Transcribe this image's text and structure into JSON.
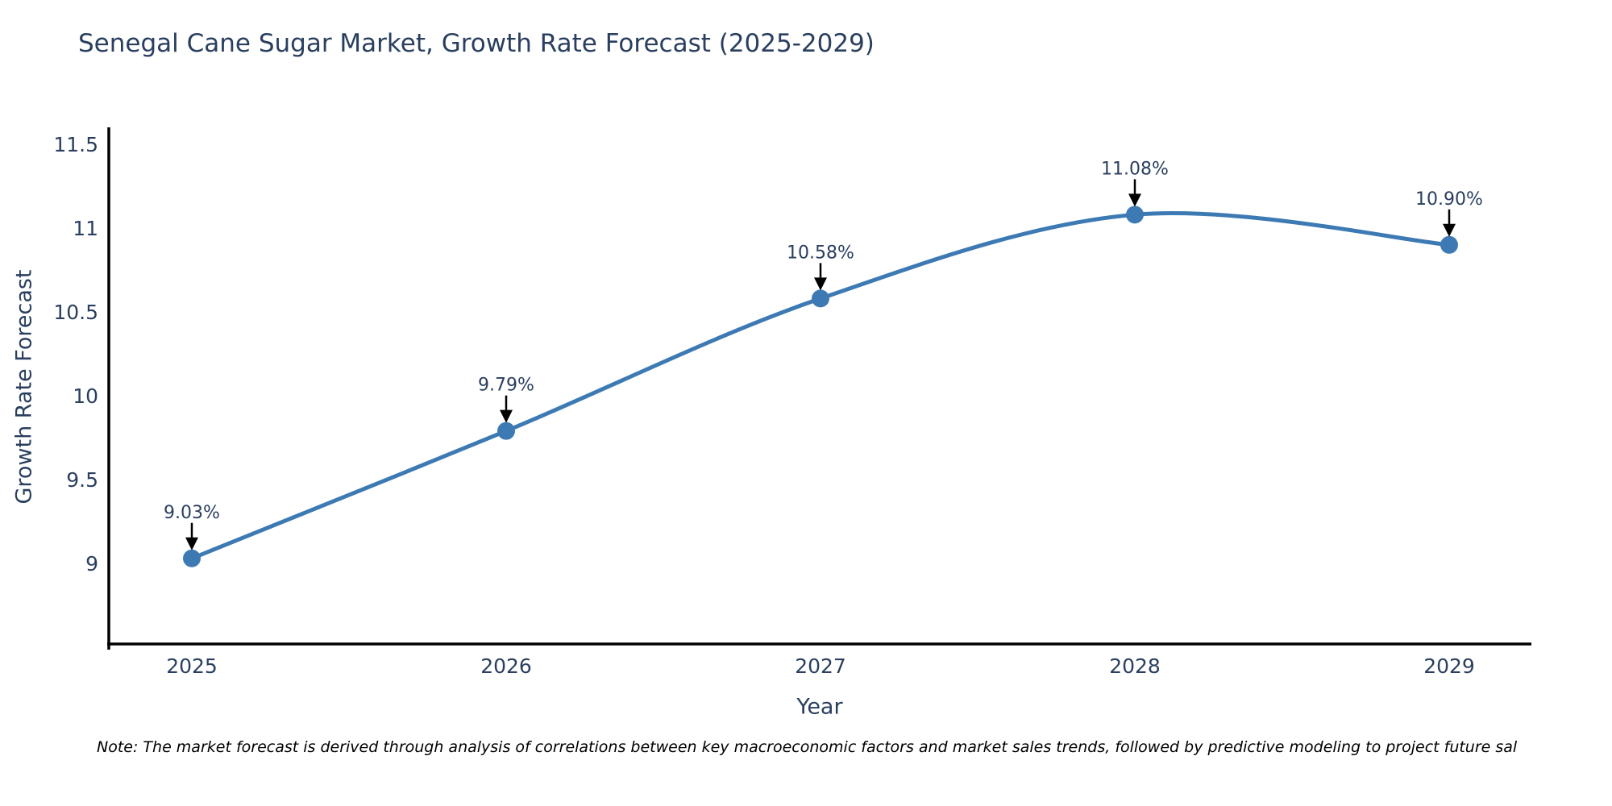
{
  "chart_data": {
    "type": "line",
    "title": "Senegal Cane Sugar Market, Growth Rate Forecast (2025-2029)",
    "xlabel": "Year",
    "ylabel": "Growth Rate Forecast",
    "x": [
      "2025",
      "2026",
      "2027",
      "2028",
      "2029"
    ],
    "values": [
      9.03,
      9.79,
      10.58,
      11.08,
      10.9
    ],
    "point_labels": [
      "9.03%",
      "9.79%",
      "10.58%",
      "11.08%",
      "10.90%"
    ],
    "y_tick_labels": [
      "9",
      "9.5",
      "10",
      "10.5",
      "11",
      "11.5"
    ],
    "y_tick_values": [
      9,
      9.5,
      10,
      10.5,
      11,
      11.5
    ],
    "ylim": [
      8.5,
      11.6
    ],
    "curve": "spline",
    "grid": false,
    "legend": false,
    "annotations_style": "black-down-arrows-to-points"
  },
  "note": "Note: The market forecast is derived through analysis of correlations between key macroeconomic factors and market sales trends, followed by predictive modeling to project future sal",
  "colors": {
    "text": "#2a3f5f",
    "axis": "#000000",
    "arrow": "#000000",
    "line": "#3d7ab4",
    "marker": "#3d7ab4",
    "background": "#ffffff"
  }
}
